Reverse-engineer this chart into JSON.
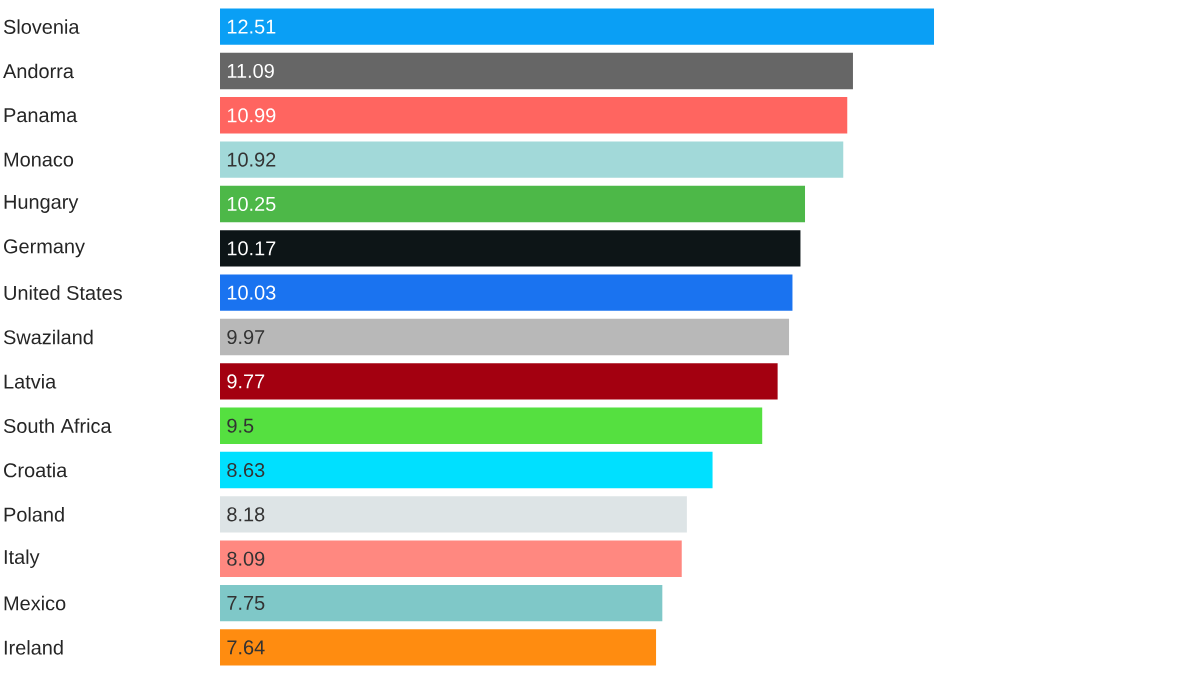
{
  "chart_data": {
    "type": "bar",
    "orientation": "horizontal",
    "data_labels": true,
    "categories": [
      "Slovenia",
      "Andorra",
      "Panama",
      "Monaco",
      "Hungary",
      "Germany",
      "United States",
      "Swaziland",
      "Latvia",
      "South Africa",
      "Croatia",
      "Poland",
      "Italy",
      "Mexico",
      "Ireland"
    ],
    "values": [
      12.51,
      11.09,
      10.99,
      10.92,
      10.25,
      10.17,
      10.03,
      9.97,
      9.77,
      9.5,
      8.63,
      8.18,
      8.09,
      7.75,
      7.64
    ],
    "colors": [
      "#0a9ff5",
      "#666666",
      "#ff6560",
      "#a2d9d9",
      "#4db848",
      "#0d1517",
      "#1a73f0",
      "#b8b8b8",
      "#a30010",
      "#55e040",
      "#00e0ff",
      "#dde4e6",
      "#ff8880",
      "#7fc8c8",
      "#ff8c10"
    ]
  }
}
